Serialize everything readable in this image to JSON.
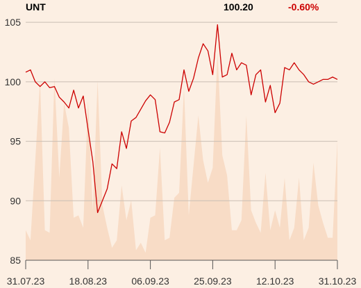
{
  "header": {
    "ticker": "UNT",
    "price": "100.20",
    "change": "-0.60%"
  },
  "colors": {
    "background": "#fcefe3",
    "line": "#cc0000",
    "volume": "#f8dcc6",
    "grid": "#c9beb3",
    "change": "#cc0000",
    "text": "#000000"
  },
  "chart_data": {
    "type": "line",
    "title": "UNT",
    "xlabel": "",
    "ylabel": "",
    "ylim": [
      85,
      106
    ],
    "yticks": [
      105,
      100,
      95,
      90,
      85
    ],
    "xticks": [
      "31.07.23",
      "18.08.23",
      "06.09.23",
      "25.09.23",
      "12.10.23",
      "31.10.23"
    ],
    "grid": true,
    "series": [
      {
        "values": [
          100.8,
          101.0,
          100.0,
          99.6,
          100.0,
          99.5,
          99.6,
          98.7,
          98.3,
          97.8,
          99.3,
          97.8,
          98.8,
          96.0,
          93.3,
          89.0,
          90.0,
          91.0,
          93.1,
          92.7,
          95.8,
          94.4,
          96.7,
          97.0,
          97.7,
          98.4,
          98.9,
          98.5,
          95.8,
          95.7,
          96.6,
          98.3,
          98.5,
          101.0,
          99.2,
          100.3,
          102.0,
          103.2,
          102.6,
          100.6,
          104.8,
          100.4,
          100.6,
          102.4,
          101.0,
          101.6,
          101.4,
          98.9,
          100.6,
          101.0,
          98.3,
          99.7,
          97.4,
          98.2,
          101.2,
          101.0,
          101.6,
          101.0,
          100.6,
          100.0,
          99.8,
          100.0,
          100.2,
          100.2,
          100.4,
          100.2
        ]
      }
    ],
    "volume": {
      "ylim": [
        0,
        100
      ],
      "values": [
        12,
        8,
        40,
        72,
        12,
        11,
        73,
        33,
        63,
        53,
        17,
        18,
        13,
        64,
        20,
        72,
        22,
        13,
        5,
        8,
        30,
        16,
        24,
        4,
        7,
        3,
        17,
        18,
        45,
        8,
        9,
        25,
        27,
        69,
        18,
        38,
        58,
        40,
        31,
        37,
        83,
        42,
        34,
        12,
        12,
        16,
        58,
        20,
        15,
        11,
        35,
        12,
        20,
        13,
        33,
        8,
        13,
        33,
        8,
        13,
        39,
        22,
        15,
        9,
        9,
        48
      ]
    }
  }
}
